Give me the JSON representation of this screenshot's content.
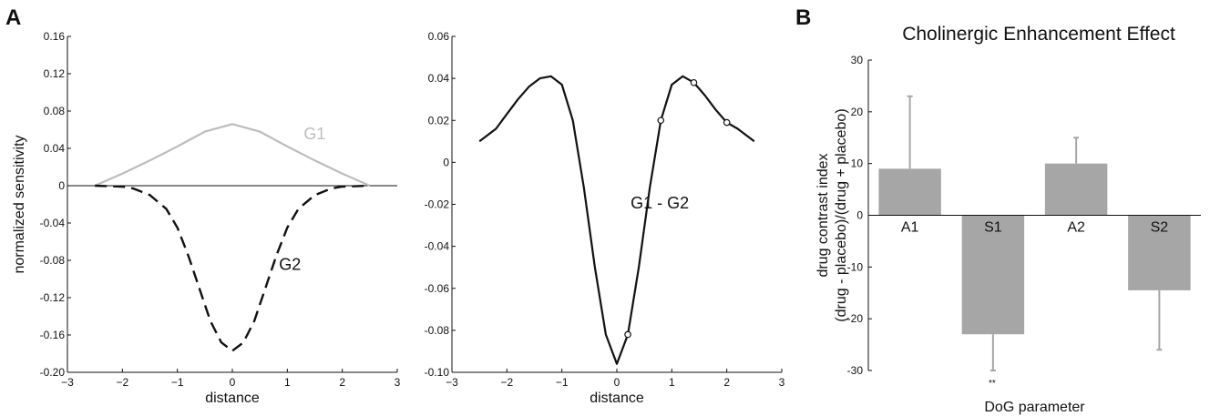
{
  "panel_labels": {
    "a": "A",
    "b": "B"
  },
  "colors": {
    "g1": "#bdbdbd",
    "g2": "#111111",
    "bar": "#a6a6a6",
    "axis": "#111111"
  },
  "chart_data": [
    {
      "id": "left",
      "type": "line",
      "title": "",
      "xlabel": "distance",
      "ylabel": "normalized sensitivity",
      "xlim": [
        -3,
        3
      ],
      "ylim": [
        -0.2,
        0.16
      ],
      "xticks": [
        "−3",
        "−2",
        "−1",
        "0",
        "1",
        "2",
        "3"
      ],
      "yticks": [
        "0.16",
        "0.12",
        "0.08",
        "0.04",
        "0",
        "-0.04",
        "-0.08",
        "-0.12",
        "-0.16",
        "-0.20"
      ],
      "series": [
        {
          "name": "G1",
          "style": "solid",
          "x": [
            -2.5,
            -2,
            -1.5,
            -1,
            -0.5,
            0,
            0.5,
            1,
            1.5,
            2,
            2.5
          ],
          "y": [
            0.0,
            0.013,
            0.027,
            0.042,
            0.058,
            0.066,
            0.058,
            0.042,
            0.027,
            0.013,
            0.0
          ]
        },
        {
          "name": "G2",
          "style": "dashed",
          "x": [
            -2.5,
            -2,
            -1.8,
            -1.5,
            -1.2,
            -1,
            -0.8,
            -0.6,
            -0.4,
            -0.2,
            0,
            0.2,
            0.4,
            0.6,
            0.8,
            1,
            1.2,
            1.5,
            1.8,
            2,
            2.5
          ],
          "y": [
            0.0,
            -0.001,
            -0.003,
            -0.01,
            -0.025,
            -0.045,
            -0.075,
            -0.11,
            -0.145,
            -0.168,
            -0.177,
            -0.168,
            -0.145,
            -0.11,
            -0.075,
            -0.045,
            -0.025,
            -0.01,
            -0.003,
            -0.001,
            0.0
          ]
        }
      ]
    },
    {
      "id": "middle",
      "type": "line",
      "title": "",
      "xlabel": "distance",
      "ylabel": "",
      "xlim": [
        -3,
        3
      ],
      "ylim": [
        -0.1,
        0.06
      ],
      "xticks": [
        "−3",
        "−2",
        "−1",
        "0",
        "1",
        "2",
        "3"
      ],
      "yticks": [
        "0.06",
        "0.04",
        "0.02",
        "0",
        "-0.02",
        "-0.04",
        "-0.06",
        "-0.08",
        "-0.10"
      ],
      "series": [
        {
          "name": "G1 - G2",
          "style": "solid",
          "x": [
            -2.5,
            -2.2,
            -2,
            -1.8,
            -1.6,
            -1.4,
            -1.2,
            -1,
            -0.8,
            -0.6,
            -0.4,
            -0.2,
            0,
            0.2,
            0.4,
            0.6,
            0.8,
            1,
            1.2,
            1.4,
            1.6,
            1.8,
            2,
            2.2,
            2.5
          ],
          "y": [
            0.01,
            0.016,
            0.023,
            0.03,
            0.036,
            0.04,
            0.041,
            0.037,
            0.02,
            -0.012,
            -0.05,
            -0.082,
            -0.096,
            -0.082,
            -0.05,
            -0.012,
            0.02,
            0.037,
            0.041,
            0.038,
            0.032,
            0.025,
            0.019,
            0.016,
            0.01
          ]
        }
      ],
      "markers": {
        "x": [
          0.2,
          0.8,
          1.4,
          2.0
        ],
        "y": [
          -0.082,
          0.02,
          0.038,
          0.019
        ]
      }
    },
    {
      "id": "right",
      "type": "bar",
      "title": "Cholinergic Enhancement Effect",
      "xlabel": "DoG parameter",
      "ylabel_line1": "drug contrast index",
      "ylabel_line2": "(drug - placebo)/(drug + placebo)",
      "ylim": [
        -30,
        30
      ],
      "yticks": [
        "30",
        "20",
        "10",
        "0",
        "-10",
        "-20",
        "-30"
      ],
      "categories": [
        "A1",
        "S1",
        "A2",
        "S2"
      ],
      "values": [
        9,
        -23,
        10,
        -14.5
      ],
      "errors": [
        14,
        7,
        5,
        11.5
      ],
      "annotations": [
        {
          "category": "S1",
          "text": "**"
        }
      ]
    }
  ]
}
